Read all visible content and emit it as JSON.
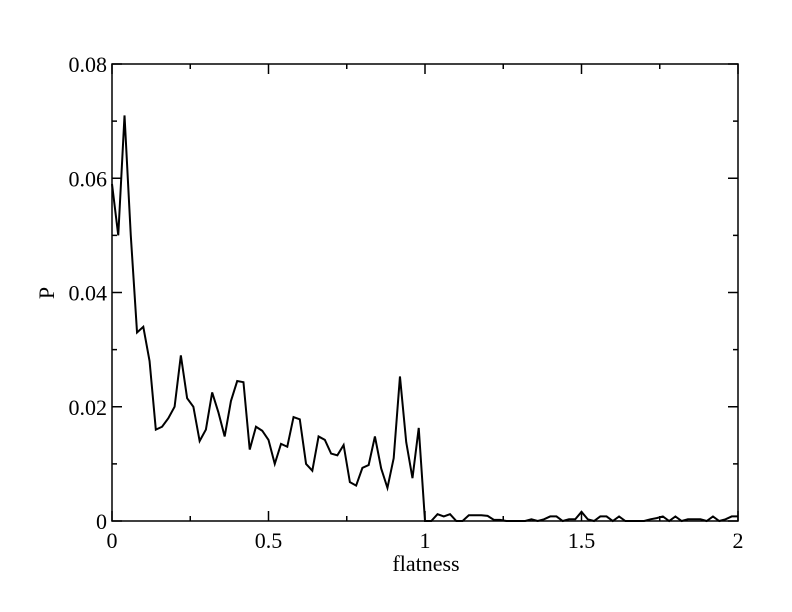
{
  "chart_data": {
    "type": "line",
    "xlabel": "flatness",
    "ylabel": "P",
    "xlim": [
      0,
      2
    ],
    "ylim": [
      0,
      0.08
    ],
    "grid": false,
    "legend": "none",
    "x_ticks": [
      0,
      0.5,
      1,
      1.5,
      2
    ],
    "x_tick_labels": [
      "0",
      "0.5",
      "1",
      "1.5",
      "2"
    ],
    "y_ticks": [
      0,
      0.02,
      0.04,
      0.06,
      0.08
    ],
    "y_tick_labels": [
      "0",
      "0.02",
      "0.04",
      "0.06",
      "0.08"
    ],
    "series": [
      {
        "color": "#000000",
        "x": [
          0.0,
          0.02,
          0.04,
          0.06,
          0.08,
          0.1,
          0.12,
          0.14,
          0.16,
          0.18,
          0.2,
          0.22,
          0.24,
          0.26,
          0.28,
          0.3,
          0.32,
          0.34,
          0.36,
          0.38,
          0.4,
          0.42,
          0.44,
          0.46,
          0.48,
          0.5,
          0.52,
          0.54,
          0.56,
          0.58,
          0.6,
          0.62,
          0.64,
          0.66,
          0.68,
          0.7,
          0.72,
          0.74,
          0.76,
          0.78,
          0.8,
          0.82,
          0.84,
          0.86,
          0.88,
          0.9,
          0.92,
          0.94,
          0.96,
          0.98,
          1.0,
          1.02,
          1.04,
          1.06,
          1.08,
          1.1,
          1.12,
          1.14,
          1.16,
          1.18,
          1.2,
          1.22,
          1.24,
          1.26,
          1.28,
          1.3,
          1.32,
          1.34,
          1.36,
          1.38,
          1.4,
          1.42,
          1.44,
          1.46,
          1.48,
          1.5,
          1.52,
          1.54,
          1.56,
          1.58,
          1.6,
          1.62,
          1.64,
          1.66,
          1.68,
          1.7,
          1.72,
          1.74,
          1.76,
          1.78,
          1.8,
          1.82,
          1.84,
          1.86,
          1.88,
          1.9,
          1.92,
          1.94,
          1.96,
          1.98,
          2.0
        ],
        "y": [
          0.059,
          0.05,
          0.071,
          0.05,
          0.033,
          0.034,
          0.028,
          0.016,
          0.0165,
          0.018,
          0.02,
          0.029,
          0.0215,
          0.02,
          0.014,
          0.016,
          0.0225,
          0.019,
          0.0148,
          0.021,
          0.0245,
          0.0243,
          0.0125,
          0.0165,
          0.0158,
          0.0142,
          0.01,
          0.0135,
          0.013,
          0.0182,
          0.0178,
          0.01,
          0.0088,
          0.0148,
          0.0142,
          0.0118,
          0.0115,
          0.0133,
          0.0068,
          0.0062,
          0.0093,
          0.0098,
          0.0148,
          0.0092,
          0.0058,
          0.011,
          0.0253,
          0.0138,
          0.0075,
          0.0163,
          0.0,
          0.0,
          0.0012,
          0.0008,
          0.0012,
          0.0,
          0.0,
          0.001,
          0.001,
          0.001,
          0.0009,
          0.0002,
          0.0002,
          0.0,
          0.0,
          0.0,
          0.0,
          0.0003,
          0.0,
          0.0003,
          0.0008,
          0.0008,
          0.0,
          0.0003,
          0.0003,
          0.0016,
          0.0003,
          0.0,
          0.0008,
          0.0008,
          0.0,
          0.0008,
          0.0,
          0.0,
          0.0,
          0.0,
          0.0003,
          0.0005,
          0.0008,
          0.0,
          0.0008,
          0.0,
          0.0003,
          0.0003,
          0.0003,
          0.0,
          0.0008,
          0.0,
          0.0003,
          0.0008,
          0.0008
        ]
      }
    ]
  }
}
